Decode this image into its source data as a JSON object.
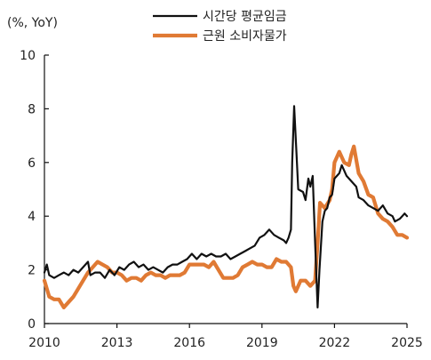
{
  "chart_data": {
    "type": "line",
    "unit_label": "(%, YoY)",
    "legend_position": "top-center",
    "xlim": [
      2010,
      2025
    ],
    "ylim": [
      0,
      10
    ],
    "x_ticks": [
      "2010",
      "2013",
      "2016",
      "2019",
      "2022",
      "2025"
    ],
    "y_ticks": [
      "0",
      "2",
      "4",
      "6",
      "8",
      "10"
    ],
    "grid": false,
    "series": [
      {
        "name": "시간당 평균임금",
        "color": "#111111",
        "points": [
          [
            2010.0,
            1.9
          ],
          [
            2010.1,
            2.2
          ],
          [
            2010.2,
            1.8
          ],
          [
            2010.4,
            1.7
          ],
          [
            2010.6,
            1.8
          ],
          [
            2010.8,
            1.9
          ],
          [
            2011.0,
            1.8
          ],
          [
            2011.2,
            2.0
          ],
          [
            2011.4,
            1.9
          ],
          [
            2011.6,
            2.1
          ],
          [
            2011.8,
            2.3
          ],
          [
            2011.9,
            1.8
          ],
          [
            2012.1,
            1.9
          ],
          [
            2012.3,
            1.9
          ],
          [
            2012.5,
            1.7
          ],
          [
            2012.7,
            2.0
          ],
          [
            2012.9,
            1.8
          ],
          [
            2013.1,
            2.1
          ],
          [
            2013.3,
            2.0
          ],
          [
            2013.5,
            2.2
          ],
          [
            2013.7,
            2.3
          ],
          [
            2013.9,
            2.1
          ],
          [
            2014.1,
            2.2
          ],
          [
            2014.3,
            2.0
          ],
          [
            2014.5,
            2.1
          ],
          [
            2014.7,
            2.0
          ],
          [
            2014.9,
            1.9
          ],
          [
            2015.1,
            2.1
          ],
          [
            2015.3,
            2.2
          ],
          [
            2015.5,
            2.2
          ],
          [
            2015.7,
            2.3
          ],
          [
            2015.9,
            2.4
          ],
          [
            2016.1,
            2.6
          ],
          [
            2016.3,
            2.4
          ],
          [
            2016.5,
            2.6
          ],
          [
            2016.7,
            2.5
          ],
          [
            2016.9,
            2.6
          ],
          [
            2017.1,
            2.5
          ],
          [
            2017.3,
            2.5
          ],
          [
            2017.5,
            2.6
          ],
          [
            2017.7,
            2.4
          ],
          [
            2017.9,
            2.5
          ],
          [
            2018.1,
            2.6
          ],
          [
            2018.3,
            2.7
          ],
          [
            2018.5,
            2.8
          ],
          [
            2018.7,
            2.9
          ],
          [
            2018.9,
            3.2
          ],
          [
            2019.1,
            3.3
          ],
          [
            2019.3,
            3.5
          ],
          [
            2019.5,
            3.3
          ],
          [
            2019.7,
            3.2
          ],
          [
            2019.9,
            3.1
          ],
          [
            2020.0,
            3.0
          ],
          [
            2020.1,
            3.2
          ],
          [
            2020.2,
            3.5
          ],
          [
            2020.25,
            6.0
          ],
          [
            2020.33,
            8.1
          ],
          [
            2020.42,
            6.5
          ],
          [
            2020.5,
            5.0
          ],
          [
            2020.7,
            4.9
          ],
          [
            2020.8,
            4.6
          ],
          [
            2020.92,
            5.4
          ],
          [
            2021.0,
            5.1
          ],
          [
            2021.1,
            5.5
          ],
          [
            2021.2,
            3.0
          ],
          [
            2021.3,
            0.6
          ],
          [
            2021.38,
            2.0
          ],
          [
            2021.5,
            3.8
          ],
          [
            2021.6,
            4.2
          ],
          [
            2021.7,
            4.3
          ],
          [
            2021.8,
            4.7
          ],
          [
            2021.9,
            4.8
          ],
          [
            2022.0,
            5.4
          ],
          [
            2022.2,
            5.6
          ],
          [
            2022.3,
            5.9
          ],
          [
            2022.5,
            5.5
          ],
          [
            2022.7,
            5.3
          ],
          [
            2022.9,
            5.1
          ],
          [
            2023.0,
            4.7
          ],
          [
            2023.2,
            4.6
          ],
          [
            2023.4,
            4.4
          ],
          [
            2023.6,
            4.3
          ],
          [
            2023.8,
            4.2
          ],
          [
            2024.0,
            4.4
          ],
          [
            2024.2,
            4.1
          ],
          [
            2024.4,
            4.0
          ],
          [
            2024.5,
            3.8
          ],
          [
            2024.7,
            3.9
          ],
          [
            2024.8,
            4.0
          ],
          [
            2024.9,
            4.1
          ],
          [
            2025.0,
            4.0
          ]
        ]
      },
      {
        "name": "근원 소비자물가",
        "color": "#E07A34",
        "points": [
          [
            2010.0,
            1.6
          ],
          [
            2010.2,
            1.0
          ],
          [
            2010.4,
            0.9
          ],
          [
            2010.6,
            0.9
          ],
          [
            2010.8,
            0.6
          ],
          [
            2011.0,
            0.8
          ],
          [
            2011.2,
            1.0
          ],
          [
            2011.4,
            1.3
          ],
          [
            2011.6,
            1.6
          ],
          [
            2011.8,
            1.9
          ],
          [
            2012.0,
            2.1
          ],
          [
            2012.2,
            2.3
          ],
          [
            2012.4,
            2.2
          ],
          [
            2012.6,
            2.1
          ],
          [
            2012.8,
            1.9
          ],
          [
            2013.0,
            1.9
          ],
          [
            2013.2,
            1.8
          ],
          [
            2013.4,
            1.6
          ],
          [
            2013.6,
            1.7
          ],
          [
            2013.8,
            1.7
          ],
          [
            2014.0,
            1.6
          ],
          [
            2014.2,
            1.8
          ],
          [
            2014.4,
            1.9
          ],
          [
            2014.6,
            1.8
          ],
          [
            2014.8,
            1.8
          ],
          [
            2015.0,
            1.7
          ],
          [
            2015.2,
            1.8
          ],
          [
            2015.4,
            1.8
          ],
          [
            2015.6,
            1.8
          ],
          [
            2015.8,
            1.9
          ],
          [
            2016.0,
            2.2
          ],
          [
            2016.2,
            2.2
          ],
          [
            2016.4,
            2.2
          ],
          [
            2016.6,
            2.2
          ],
          [
            2016.8,
            2.1
          ],
          [
            2017.0,
            2.3
          ],
          [
            2017.2,
            2.0
          ],
          [
            2017.4,
            1.7
          ],
          [
            2017.6,
            1.7
          ],
          [
            2017.8,
            1.7
          ],
          [
            2018.0,
            1.8
          ],
          [
            2018.2,
            2.1
          ],
          [
            2018.4,
            2.2
          ],
          [
            2018.6,
            2.3
          ],
          [
            2018.8,
            2.2
          ],
          [
            2019.0,
            2.2
          ],
          [
            2019.2,
            2.1
          ],
          [
            2019.4,
            2.1
          ],
          [
            2019.6,
            2.4
          ],
          [
            2019.8,
            2.3
          ],
          [
            2020.0,
            2.3
          ],
          [
            2020.2,
            2.1
          ],
          [
            2020.3,
            1.4
          ],
          [
            2020.4,
            1.2
          ],
          [
            2020.6,
            1.6
          ],
          [
            2020.8,
            1.6
          ],
          [
            2021.0,
            1.4
          ],
          [
            2021.2,
            1.6
          ],
          [
            2021.3,
            3.0
          ],
          [
            2021.4,
            4.5
          ],
          [
            2021.6,
            4.3
          ],
          [
            2021.8,
            4.6
          ],
          [
            2021.9,
            5.0
          ],
          [
            2022.0,
            6.0
          ],
          [
            2022.2,
            6.4
          ],
          [
            2022.4,
            6.0
          ],
          [
            2022.6,
            5.9
          ],
          [
            2022.7,
            6.3
          ],
          [
            2022.8,
            6.6
          ],
          [
            2023.0,
            5.6
          ],
          [
            2023.2,
            5.3
          ],
          [
            2023.4,
            4.8
          ],
          [
            2023.6,
            4.7
          ],
          [
            2023.8,
            4.1
          ],
          [
            2024.0,
            3.9
          ],
          [
            2024.2,
            3.8
          ],
          [
            2024.4,
            3.6
          ],
          [
            2024.6,
            3.3
          ],
          [
            2024.8,
            3.3
          ],
          [
            2025.0,
            3.2
          ]
        ]
      }
    ]
  }
}
